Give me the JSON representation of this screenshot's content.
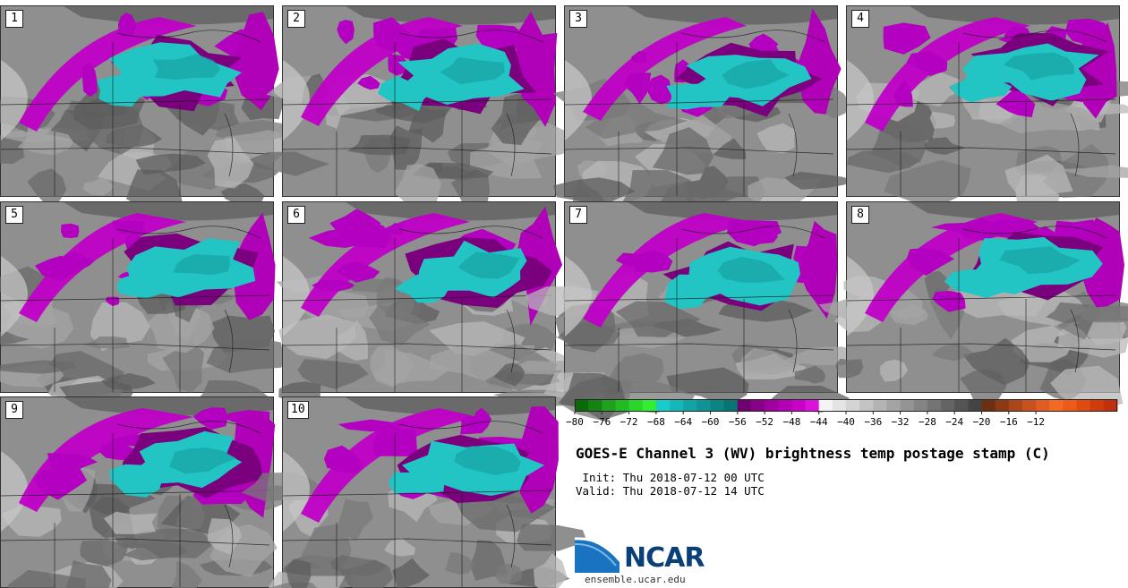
{
  "panels": [
    {
      "label": "1"
    },
    {
      "label": "2"
    },
    {
      "label": "3"
    },
    {
      "label": "4"
    },
    {
      "label": "5"
    },
    {
      "label": "6"
    },
    {
      "label": "7"
    },
    {
      "label": "8"
    },
    {
      "label": "9"
    },
    {
      "label": "10"
    }
  ],
  "colorbar": {
    "ticks": [
      "−80",
      "−76",
      "−72",
      "−68",
      "−64",
      "−60",
      "−56",
      "−52",
      "−48",
      "−44",
      "−40",
      "−36",
      "−32",
      "−28",
      "−24",
      "−20",
      "−16",
      "−12"
    ],
    "colors": [
      "#0a6a0a",
      "#138313",
      "#1fa01f",
      "#22bb22",
      "#2ad62a",
      "#30ee30",
      "#19cccc",
      "#15b8b8",
      "#11a4a4",
      "#0e9494",
      "#0b8484",
      "#087474",
      "#700070",
      "#880088",
      "#a000a0",
      "#b400b4",
      "#c800c8",
      "#dd10dd",
      "#f4f4f4",
      "#e4e4e4",
      "#d4d4d4",
      "#c4c4c4",
      "#b4b4b4",
      "#a4a4a4",
      "#949494",
      "#848484",
      "#747474",
      "#646464",
      "#545454",
      "#444444",
      "#6e2e12",
      "#8c3a16",
      "#aa461a",
      "#c8521e",
      "#e05c20",
      "#f26a22",
      "#ee5a18",
      "#e04a10",
      "#d03a0c",
      "#c0300a"
    ]
  },
  "title": "GOES-E Channel 3 (WV) brightness temp postage stamp (C)",
  "init": " Init: Thu 2018-07-12 00 UTC",
  "valid": "Valid: Thu 2018-07-12 14 UTC",
  "logo": {
    "text": "NCAR",
    "site": "ensemble.ucar.edu"
  }
}
